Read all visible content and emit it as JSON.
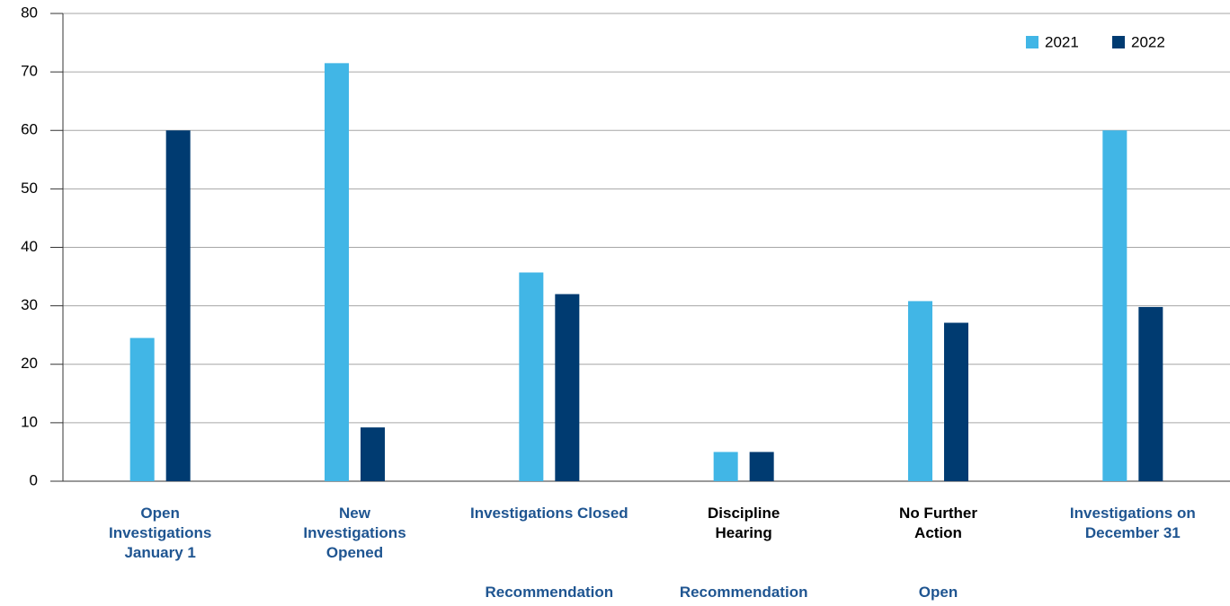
{
  "chart_data": {
    "type": "bar",
    "categories": [
      "Open Investigations January 1",
      "New Investigations Opened",
      "Investigations Closed",
      "Discipline Hearing",
      "No Further Action",
      "Investigations on December 31"
    ],
    "category_sublabels": [
      null,
      null,
      "Recommendation",
      "Recommendation",
      "Open",
      null
    ],
    "category_label_colors": [
      "#1f5591",
      "#1f5591",
      "#1f5591",
      "#000000",
      "#000000",
      "#1f5591"
    ],
    "sublabel_color": "#1f5591",
    "series": [
      {
        "name": "2021",
        "color": "#41b6e6",
        "values": [
          24.5,
          71.5,
          35.7,
          5,
          30.8,
          60
        ]
      },
      {
        "name": "2022",
        "color": "#003b71",
        "values": [
          60,
          9.2,
          32,
          5,
          27.1,
          29.8
        ]
      }
    ],
    "ylim": [
      0,
      80
    ],
    "yticks": [
      0,
      10,
      20,
      30,
      40,
      50,
      60,
      70,
      80
    ],
    "grid": true,
    "legend": "upper right"
  }
}
